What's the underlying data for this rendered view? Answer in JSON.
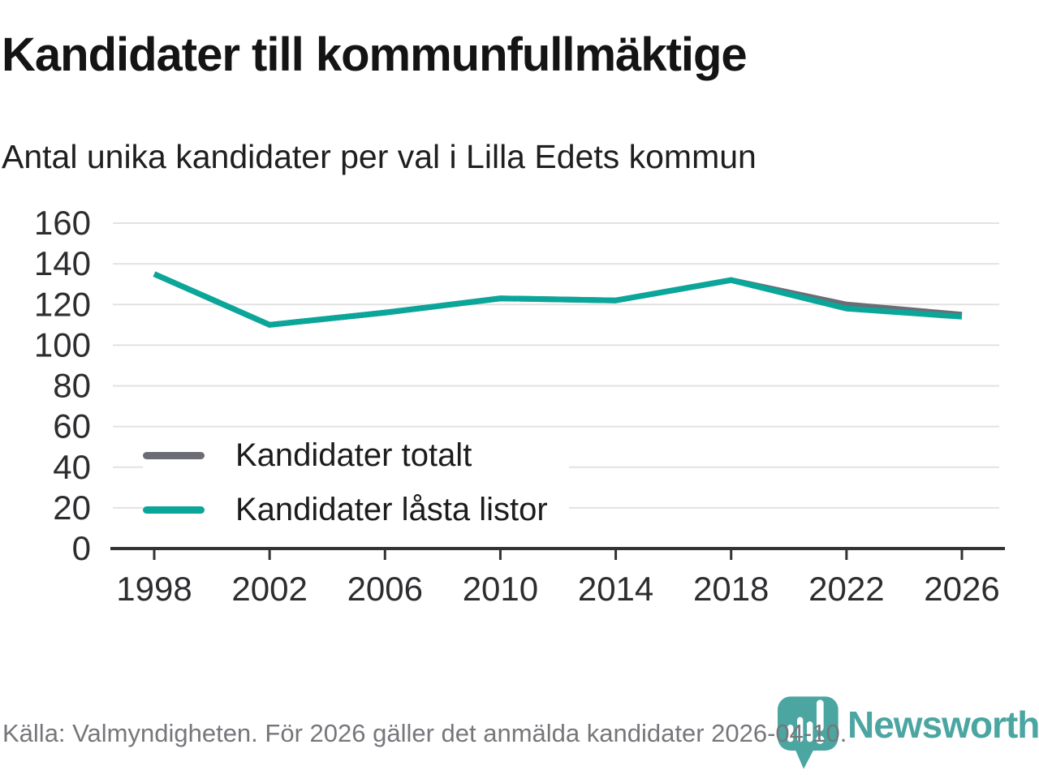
{
  "header": {
    "title": "Kandidater till kommunfullmäktige",
    "subtitle": "Antal unika kandidater per val i Lilla Edets kommun"
  },
  "chart_data": {
    "type": "line",
    "categories": [
      "1998",
      "2002",
      "2006",
      "2010",
      "2014",
      "2018",
      "2022",
      "2026"
    ],
    "series": [
      {
        "name": "Kandidater totalt",
        "color": "#6c6c75",
        "values": [
          135,
          110,
          116,
          123,
          122,
          132,
          120,
          115
        ]
      },
      {
        "name": "Kandidater låsta listor",
        "color": "#0aa69a",
        "values": [
          135,
          110,
          116,
          123,
          122,
          132,
          118,
          114
        ]
      }
    ],
    "ylim": [
      0,
      160
    ],
    "ytick_step": 20,
    "yticks": [
      0,
      20,
      40,
      60,
      80,
      100,
      120,
      140,
      160
    ],
    "grid": "horizontal",
    "legend_position": "inside-left-bottom",
    "xlabel": "",
    "ylabel": ""
  },
  "footer": {
    "source": "Källa: Valmyndigheten. För 2026 gäller det anmälda kandidater 2026-04-10.",
    "logo_text": "Newsworthy"
  },
  "colors": {
    "line_teal": "#0aa69a",
    "line_gray": "#6c6c75",
    "logo_teal": "#4ba6a1",
    "grid_line": "#e2e2e2",
    "axis_line": "#333333",
    "tick_label": "#2d2d30",
    "footer_text": "#76777b"
  },
  "icons": {
    "logo_icon": "newsworthy-bubble-barchart-icon"
  }
}
